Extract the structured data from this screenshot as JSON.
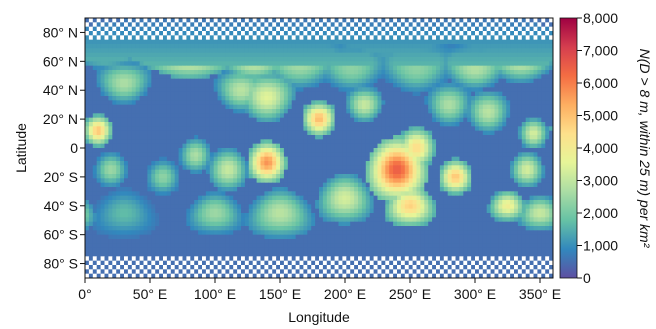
{
  "chart_data": {
    "type": "heatmap",
    "projection": "simple cylindrical (equirectangular) global map",
    "title": "",
    "xlabel": "Longitude",
    "ylabel": "Latitude",
    "xlim": [
      0,
      360
    ],
    "ylim": [
      -90,
      90
    ],
    "x_ticks": [
      {
        "value": 0,
        "label": "0°"
      },
      {
        "value": 50,
        "label": "50° E"
      },
      {
        "value": 100,
        "label": "100° E"
      },
      {
        "value": 150,
        "label": "150° E"
      },
      {
        "value": 200,
        "label": "200° E"
      },
      {
        "value": 250,
        "label": "250° E"
      },
      {
        "value": 300,
        "label": "300° E"
      },
      {
        "value": 350,
        "label": "350° E"
      }
    ],
    "y_ticks": [
      {
        "value": 80,
        "label": "80° N"
      },
      {
        "value": 60,
        "label": "60° N"
      },
      {
        "value": 40,
        "label": "40° N"
      },
      {
        "value": 20,
        "label": "20° N"
      },
      {
        "value": 0,
        "label": "0"
      },
      {
        "value": -20,
        "label": "20° S"
      },
      {
        "value": -40,
        "label": "40° S"
      },
      {
        "value": -60,
        "label": "60° S"
      },
      {
        "value": -80,
        "label": "80° S"
      }
    ],
    "colorbar": {
      "label": "N(D > 8 m, within 25 m) per km²",
      "range": [
        0,
        8000
      ],
      "ticks": [
        {
          "value": 0,
          "label": "0"
        },
        {
          "value": 1000,
          "label": "1,000"
        },
        {
          "value": 2000,
          "label": "2,000"
        },
        {
          "value": 3000,
          "label": "3,000"
        },
        {
          "value": 4000,
          "label": "4,000"
        },
        {
          "value": 5000,
          "label": "5,000"
        },
        {
          "value": 6000,
          "label": "6,000"
        },
        {
          "value": 7000,
          "label": "7,000"
        },
        {
          "value": 8000,
          "label": "8,000"
        }
      ],
      "colormap": [
        "#5e4fa2",
        "#3288bd",
        "#66c2a5",
        "#abdda4",
        "#e6f598",
        "#fee08b",
        "#fdae61",
        "#f46d43",
        "#d53e4f",
        "#9e0142"
      ]
    },
    "background_level": 500,
    "regions": [
      {
        "lon": 80,
        "lat": 70,
        "r": 18,
        "value": 4400
      },
      {
        "lon": 55,
        "lat": 72,
        "r": 14,
        "value": 2200
      },
      {
        "lon": 15,
        "lat": 70,
        "r": 12,
        "value": 2600
      },
      {
        "lon": 130,
        "lat": 60,
        "r": 12,
        "value": 2800
      },
      {
        "lon": 165,
        "lat": 58,
        "r": 14,
        "value": 2300
      },
      {
        "lon": 205,
        "lat": 55,
        "r": 13,
        "value": 2000
      },
      {
        "lon": 255,
        "lat": 55,
        "r": 14,
        "value": 2000
      },
      {
        "lon": 300,
        "lat": 55,
        "r": 12,
        "value": 2500
      },
      {
        "lon": 335,
        "lat": 60,
        "r": 12,
        "value": 2700
      },
      {
        "lon": 160,
        "lat": 78,
        "r": 10,
        "value": 1800
      },
      {
        "lon": 235,
        "lat": 75,
        "r": 14,
        "value": 1600
      },
      {
        "lon": 310,
        "lat": 78,
        "r": 10,
        "value": 1700
      },
      {
        "lon": 10,
        "lat": 12,
        "r": 9,
        "value": 4600
      },
      {
        "lon": 30,
        "lat": 45,
        "r": 12,
        "value": 2400
      },
      {
        "lon": 20,
        "lat": -15,
        "r": 10,
        "value": 2200
      },
      {
        "lon": 120,
        "lat": 40,
        "r": 12,
        "value": 2600
      },
      {
        "lon": 140,
        "lat": 35,
        "r": 14,
        "value": 3200
      },
      {
        "lon": 180,
        "lat": 20,
        "r": 10,
        "value": 4800
      },
      {
        "lon": 215,
        "lat": 30,
        "r": 10,
        "value": 2800
      },
      {
        "lon": 280,
        "lat": 30,
        "r": 12,
        "value": 2400
      },
      {
        "lon": 310,
        "lat": 25,
        "r": 12,
        "value": 2600
      },
      {
        "lon": 345,
        "lat": 10,
        "r": 9,
        "value": 3000
      },
      {
        "lon": 140,
        "lat": -10,
        "r": 12,
        "value": 5400
      },
      {
        "lon": 110,
        "lat": -15,
        "r": 12,
        "value": 2800
      },
      {
        "lon": 85,
        "lat": -5,
        "r": 10,
        "value": 2400
      },
      {
        "lon": 60,
        "lat": -20,
        "r": 10,
        "value": 2000
      },
      {
        "lon": 240,
        "lat": -15,
        "r": 18,
        "value": 6200
      },
      {
        "lon": 255,
        "lat": 0,
        "r": 12,
        "value": 4200
      },
      {
        "lon": 250,
        "lat": -40,
        "r": 12,
        "value": 4400
      },
      {
        "lon": 285,
        "lat": -20,
        "r": 10,
        "value": 4600
      },
      {
        "lon": 325,
        "lat": -40,
        "r": 9,
        "value": 3600
      },
      {
        "lon": 340,
        "lat": -15,
        "r": 10,
        "value": 3000
      },
      {
        "lon": 200,
        "lat": -35,
        "r": 14,
        "value": 3000
      },
      {
        "lon": 150,
        "lat": -45,
        "r": 14,
        "value": 2600
      },
      {
        "lon": 100,
        "lat": -45,
        "r": 12,
        "value": 2200
      },
      {
        "lon": 30,
        "lat": -45,
        "r": 14,
        "value": 1400
      },
      {
        "lon": 350,
        "lat": -45,
        "r": 10,
        "value": 2800
      }
    ]
  }
}
